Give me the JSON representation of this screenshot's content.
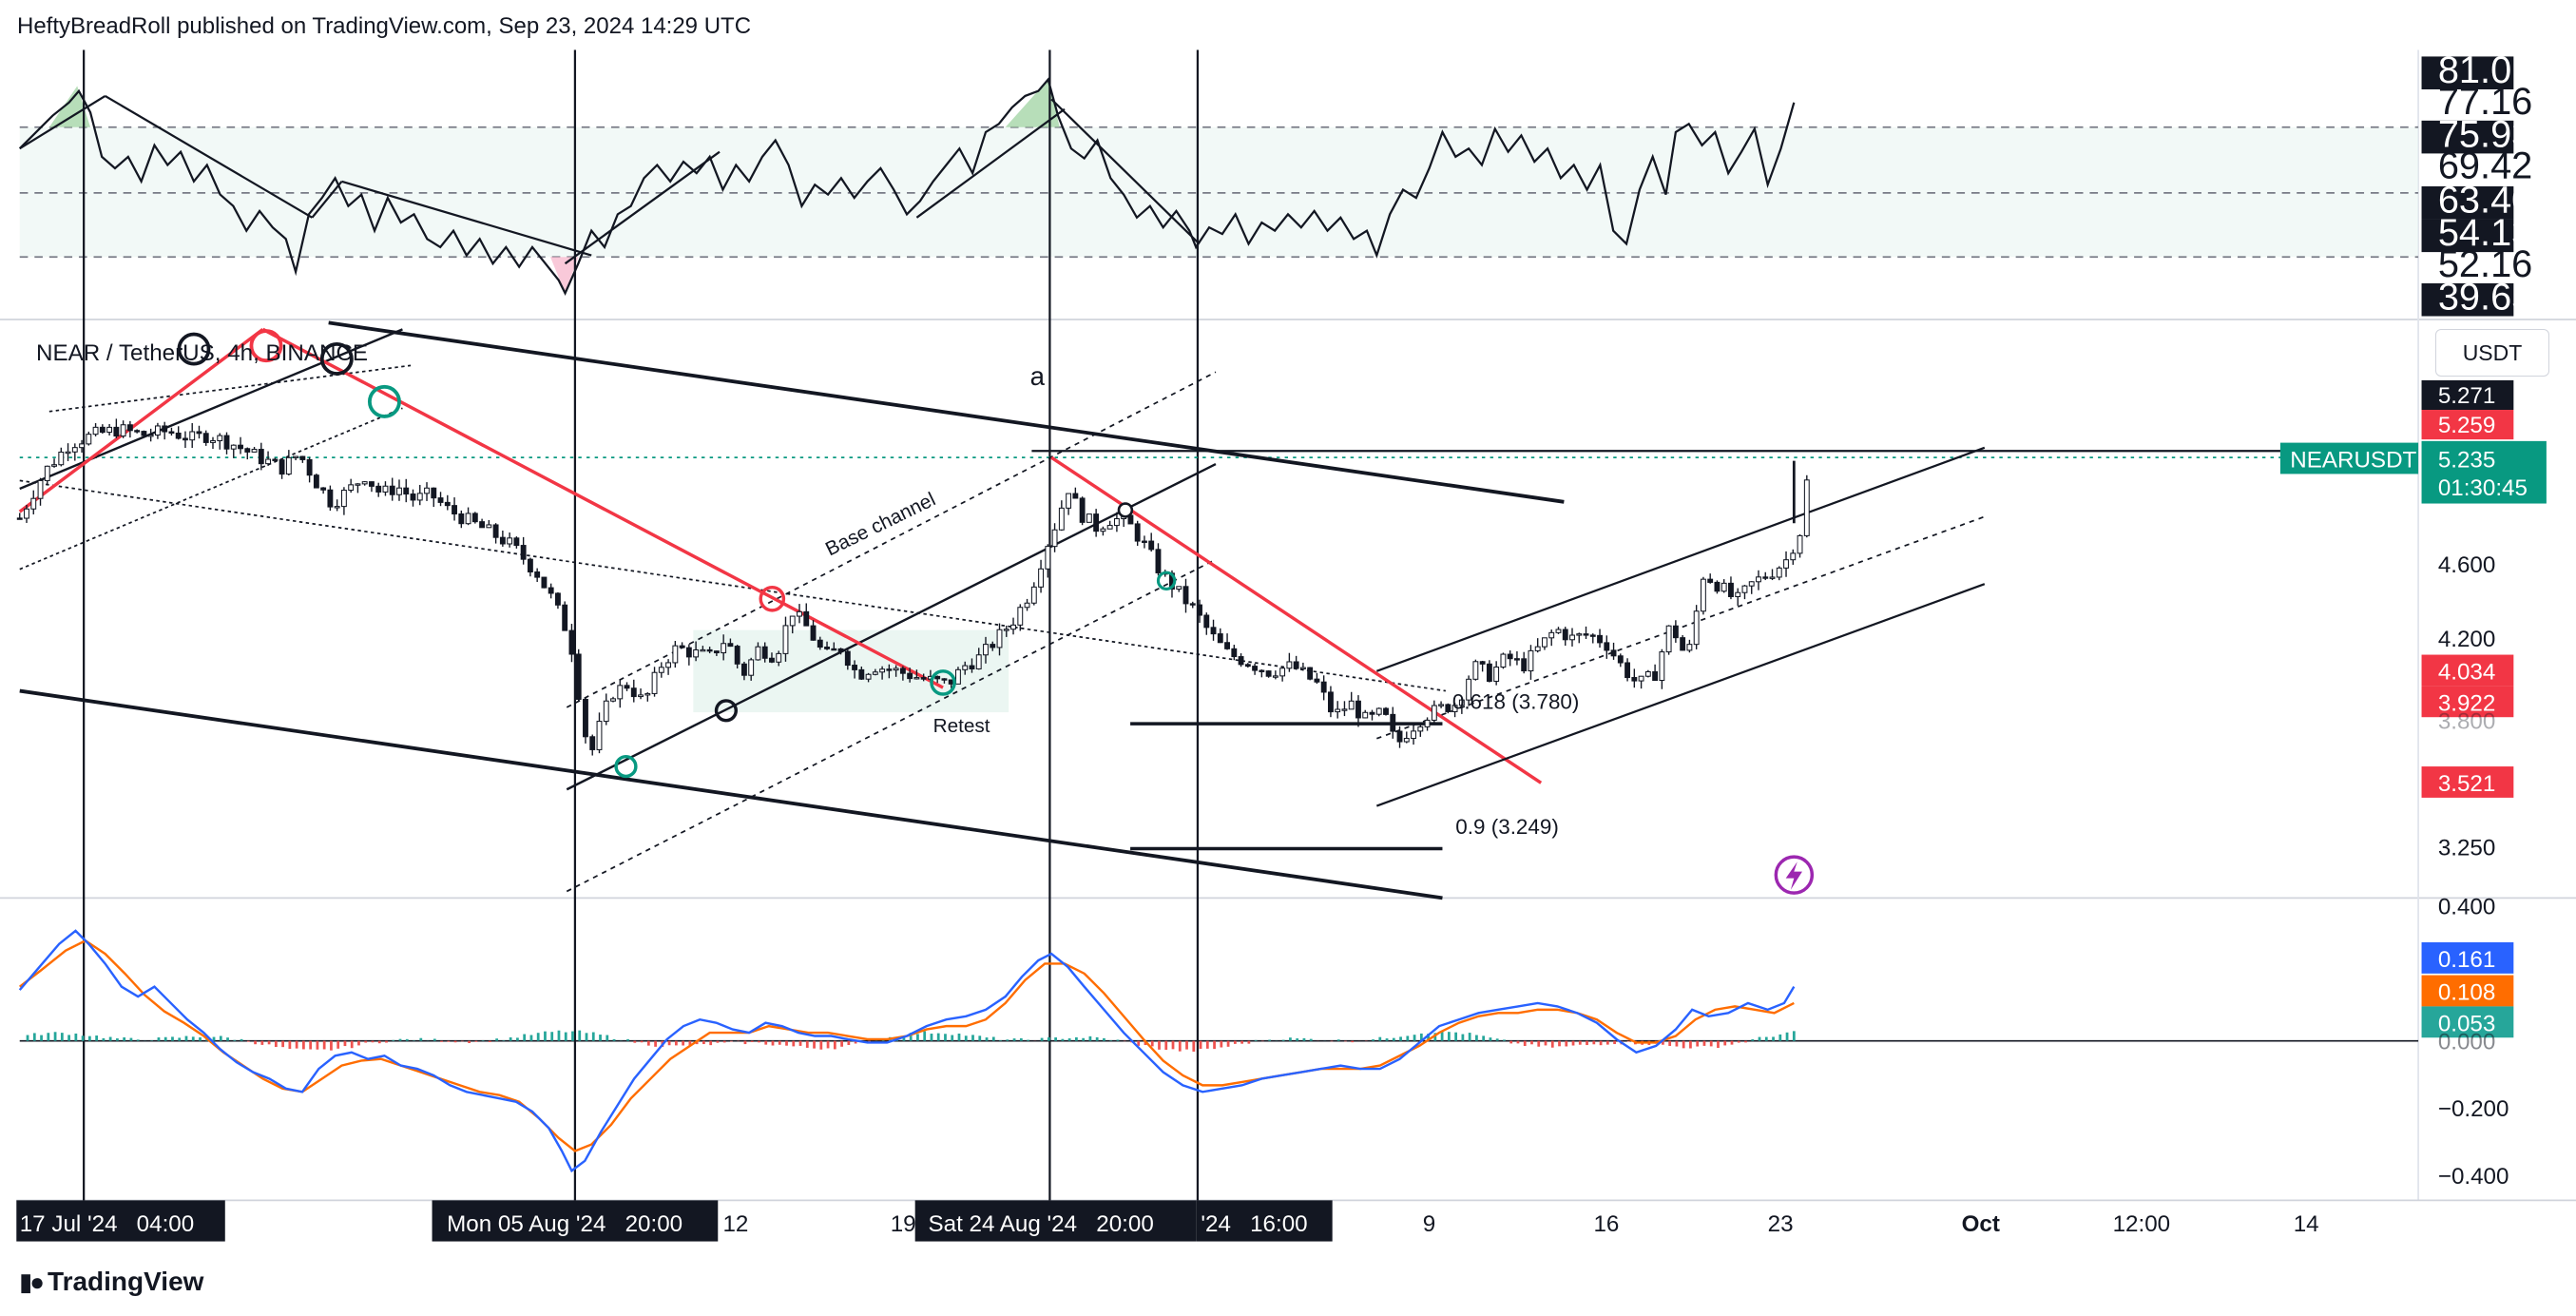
{
  "header": {
    "published": "HeftyBreadRoll published on TradingView.com, Sep 23, 2024 14:29 UTC"
  },
  "symbol": {
    "pair": "NEAR / TetherUS, 4h, BINANCE",
    "ticker": "NEARUSDT",
    "currency_button": "USDT",
    "countdown": "01:30:45"
  },
  "colors": {
    "red": "#f23645",
    "green": "#089981",
    "blue": "#2962ff",
    "orange": "#ff6d00",
    "black": "#131722"
  },
  "footer": {
    "brand": "TradingView",
    "logo_icon": "tradingview-logo-icon"
  },
  "chart_data": [
    {
      "type": "line",
      "panel": "RSI",
      "y_ticks": [
        "81.01",
        "77.16",
        "75.93",
        "69.42",
        "63.40",
        "54.13",
        "52.16",
        "39.65"
      ],
      "reference_levels": [
        75.93,
        63.4,
        54.13
      ]
    },
    {
      "type": "candlestick",
      "panel": "price",
      "title": "NEAR / TetherUS, 4h, BINANCE",
      "y_ticks": [
        "4.600",
        "4.200",
        "3.800",
        "3.250"
      ],
      "price_tags": [
        {
          "label": "5.271",
          "color": "#131722"
        },
        {
          "label": "5.259",
          "color": "#f23645"
        },
        {
          "label": "5.235",
          "color": "#089981"
        },
        {
          "label": "4.034",
          "color": "#f23645"
        },
        {
          "label": "3.922",
          "color": "#f23645"
        },
        {
          "label": "3.521",
          "color": "#f23645"
        }
      ],
      "annotations": [
        "a",
        "Base channel",
        "Retest",
        "0.618 (3.780)",
        "0.9 (3.249)"
      ],
      "close_path": [
        [
          0,
          4.85
        ],
        [
          15,
          5.1
        ],
        [
          30,
          5.25
        ],
        [
          45,
          5.3
        ],
        [
          60,
          5.33
        ],
        [
          75,
          5.3
        ],
        [
          90,
          5.32
        ],
        [
          105,
          5.28
        ],
        [
          115,
          5.3
        ],
        [
          130,
          5.25
        ],
        [
          145,
          5.18
        ],
        [
          160,
          5.12
        ],
        [
          170,
          5.2
        ],
        [
          180,
          5.05
        ],
        [
          190,
          4.93
        ],
        [
          200,
          5.0
        ],
        [
          210,
          5.08
        ],
        [
          220,
          4.98
        ],
        [
          230,
          5.02
        ],
        [
          240,
          4.95
        ],
        [
          250,
          4.98
        ],
        [
          260,
          4.9
        ],
        [
          270,
          4.85
        ],
        [
          285,
          4.78
        ],
        [
          300,
          4.7
        ],
        [
          315,
          4.55
        ],
        [
          325,
          4.4
        ],
        [
          335,
          4.2
        ],
        [
          343,
          3.75
        ],
        [
          347,
          3.55
        ],
        [
          352,
          3.7
        ],
        [
          360,
          3.9
        ],
        [
          370,
          3.95
        ],
        [
          380,
          3.85
        ],
        [
          390,
          4.05
        ],
        [
          400,
          4.15
        ],
        [
          410,
          4.12
        ],
        [
          420,
          4.1
        ],
        [
          430,
          4.2
        ],
        [
          440,
          4.0
        ],
        [
          450,
          4.15
        ],
        [
          460,
          4.1
        ],
        [
          470,
          4.35
        ],
        [
          480,
          4.25
        ],
        [
          490,
          4.1
        ],
        [
          500,
          4.15
        ],
        [
          510,
          4.0
        ],
        [
          520,
          4.05
        ],
        [
          535,
          4.02
        ],
        [
          550,
          3.98
        ],
        [
          565,
          3.95
        ],
        [
          575,
          4.05
        ],
        [
          585,
          4.1
        ],
        [
          595,
          4.2
        ],
        [
          605,
          4.3
        ],
        [
          615,
          4.45
        ],
        [
          625,
          4.7
        ],
        [
          632,
          4.85
        ],
        [
          638,
          5.02
        ],
        [
          645,
          4.88
        ],
        [
          655,
          4.8
        ],
        [
          665,
          4.85
        ],
        [
          675,
          4.82
        ],
        [
          685,
          4.7
        ],
        [
          695,
          4.55
        ],
        [
          705,
          4.45
        ],
        [
          715,
          4.35
        ],
        [
          725,
          4.22
        ],
        [
          735,
          4.12
        ],
        [
          745,
          4.08
        ],
        [
          760,
          4.02
        ],
        [
          775,
          4.05
        ],
        [
          790,
          3.95
        ],
        [
          800,
          3.78
        ],
        [
          810,
          3.85
        ],
        [
          820,
          3.75
        ],
        [
          830,
          3.8
        ],
        [
          838,
          3.62
        ],
        [
          845,
          3.7
        ],
        [
          855,
          3.78
        ],
        [
          865,
          3.82
        ],
        [
          875,
          3.85
        ],
        [
          885,
          4.05
        ],
        [
          895,
          4.0
        ],
        [
          905,
          4.1
        ],
        [
          915,
          4.05
        ],
        [
          925,
          4.15
        ],
        [
          935,
          4.25
        ],
        [
          945,
          4.2
        ],
        [
          955,
          4.22
        ],
        [
          965,
          4.18
        ],
        [
          975,
          4.05
        ],
        [
          985,
          3.95
        ],
        [
          995,
          4.0
        ],
        [
          1005,
          4.28
        ],
        [
          1015,
          4.08
        ],
        [
          1025,
          4.55
        ],
        [
          1035,
          4.48
        ],
        [
          1045,
          4.4
        ],
        [
          1055,
          4.5
        ],
        [
          1065,
          4.55
        ],
        [
          1075,
          4.62
        ],
        [
          1085,
          4.8
        ],
        [
          1090,
          5.235
        ]
      ]
    },
    {
      "type": "line",
      "panel": "MACD",
      "y_ticks": [
        "0.400",
        "0.000",
        "−0.200",
        "−0.400"
      ],
      "value_tags": [
        {
          "label": "0.161",
          "color": "#2962ff"
        },
        {
          "label": "0.108",
          "color": "#ff6d00"
        },
        {
          "label": "0.053",
          "color": "#26a69a"
        }
      ]
    }
  ],
  "x_axis": {
    "labels": [
      {
        "text": "17 Jul '24   04:00",
        "highlight": true
      },
      {
        "text": "Mon 05 Aug '24   20:00",
        "highlight": true
      },
      {
        "text": "12",
        "highlight": false
      },
      {
        "text": "19",
        "highlight": false
      },
      {
        "text": "Sat 24 Aug '24   20:00",
        "highlight": true
      },
      {
        "text": "'24   16:00",
        "highlight": true
      },
      {
        "text": "9",
        "highlight": false
      },
      {
        "text": "16",
        "highlight": false
      },
      {
        "text": "23",
        "highlight": false
      },
      {
        "text": "Oct",
        "highlight": false
      },
      {
        "text": "12:00",
        "highlight": false
      },
      {
        "text": "14",
        "highlight": false
      }
    ]
  }
}
